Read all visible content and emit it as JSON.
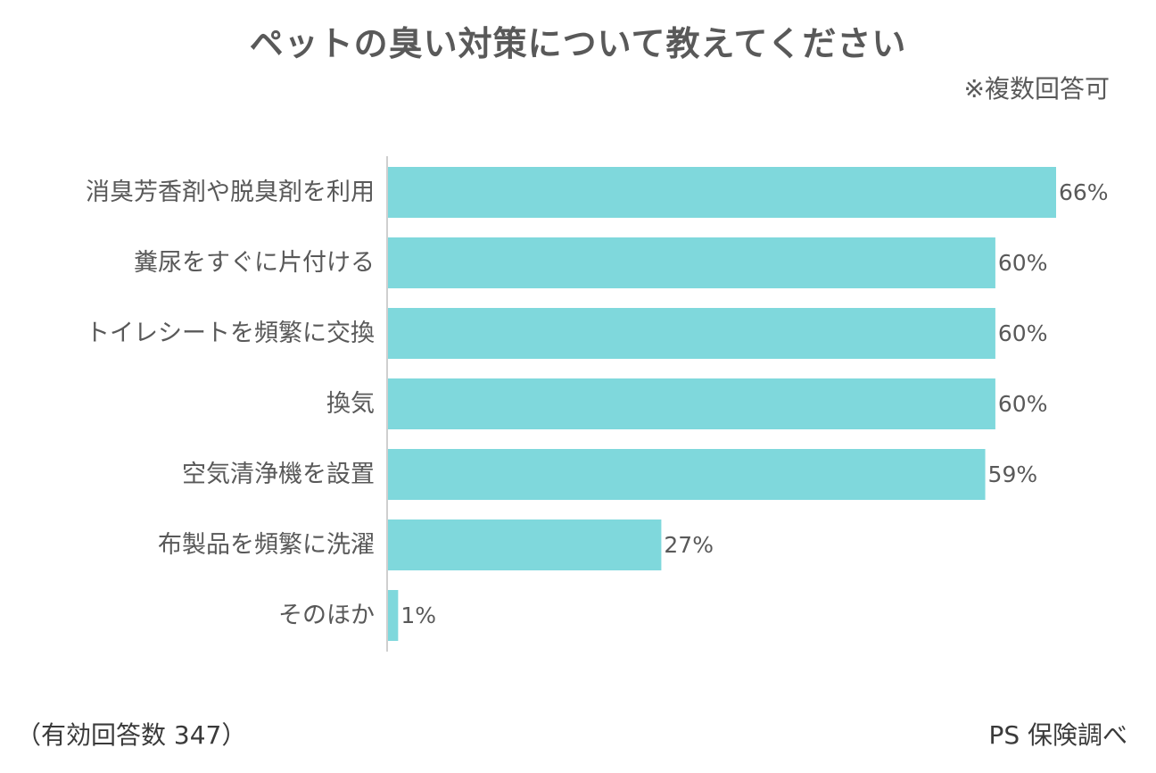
{
  "title": "ペットの臭い対策について教えてください",
  "note": "※複数回答可",
  "footer": {
    "sample": "（有効回答数 347）",
    "source": "PS 保険調べ"
  },
  "colors": {
    "bar": "#7fd8dc",
    "axis": "#bfbfbf",
    "text": "#595959"
  },
  "chart_data": {
    "type": "bar",
    "orientation": "horizontal",
    "categories": [
      "消臭芳香剤や脱臭剤を利用",
      "糞尿をすぐに片付ける",
      "トイレシートを頻繁に交換",
      "換気",
      "空気清浄機を設置",
      "布製品を頻繁に洗濯",
      "そのほか"
    ],
    "values": [
      66,
      60,
      60,
      60,
      59,
      27,
      1
    ],
    "value_labels": [
      "66%",
      "60%",
      "60%",
      "60%",
      "59%",
      "27%",
      "1%"
    ],
    "unit": "%",
    "xlim": [
      0,
      66
    ],
    "grid": false,
    "legend": "none"
  }
}
